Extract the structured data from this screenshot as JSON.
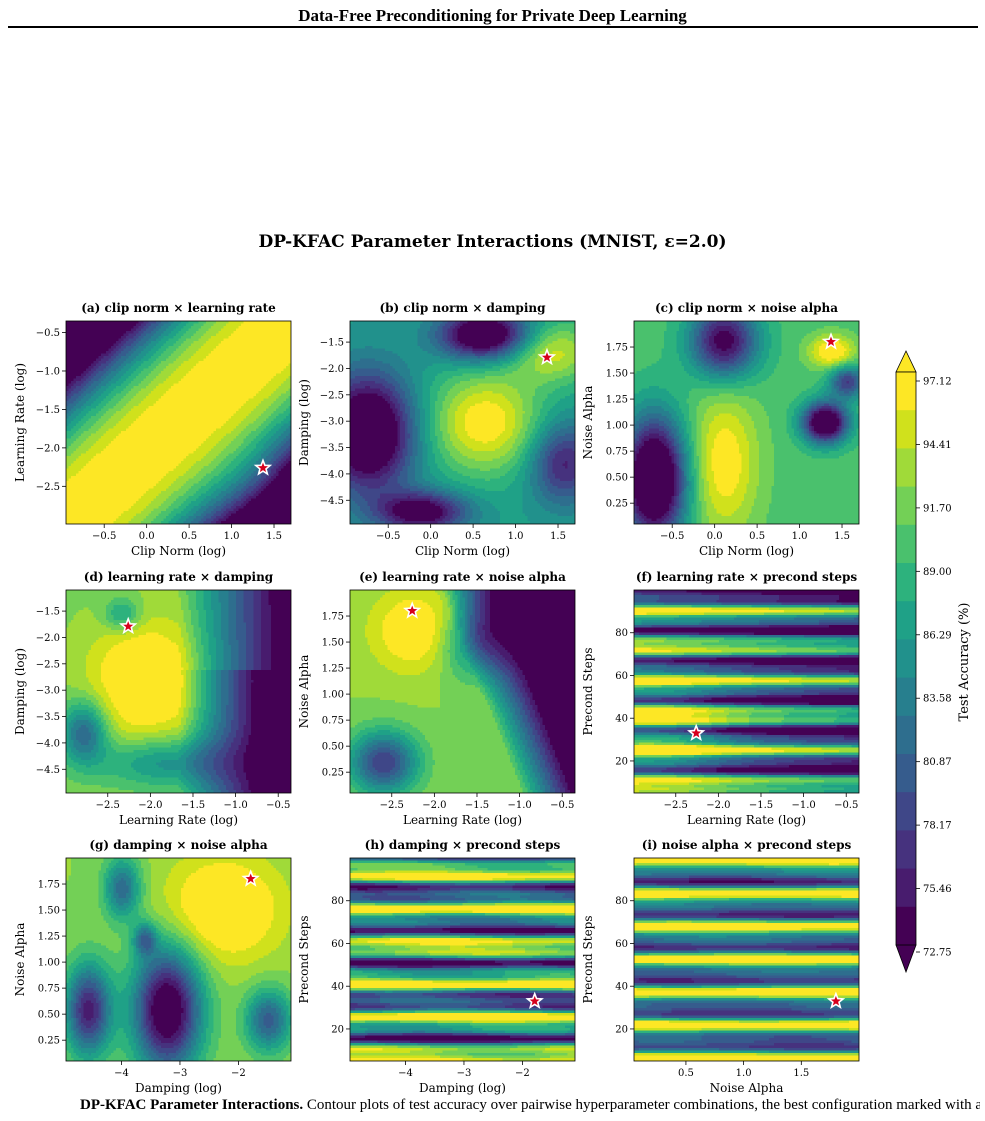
{
  "header": {
    "running_head": "Data-Free Preconditioning for Private Deep Learning"
  },
  "figure": {
    "title": "DP-KFAC Parameter Interactions (MNIST, ε=2.0)",
    "colorbar": {
      "label": "Test Accuracy (%)",
      "levels": [
        "97.12",
        "94.41",
        "91.70",
        "89.00",
        "86.29",
        "83.58",
        "80.87",
        "78.17",
        "75.46",
        "72.75"
      ],
      "colors": [
        "#fde725",
        "#d0e11c",
        "#a0da39",
        "#73d056",
        "#4ac16d",
        "#2db27d",
        "#1fa187",
        "#21918c",
        "#277f8e",
        "#2e6e8e",
        "#365c8d",
        "#3f4788",
        "#46327e",
        "#481c6e",
        "#440154"
      ]
    },
    "best_marker": {
      "shape": "star",
      "color": "#d6001c"
    }
  },
  "chart_data": [
    {
      "type": "heatmap",
      "title": "(a) clip norm × learning rate",
      "xlabel": "Clip Norm (log)",
      "ylabel": "Learning Rate (log)",
      "xlim": [
        -0.95,
        1.7
      ],
      "ylim": [
        -2.99,
        -0.35
      ],
      "xticks": [
        "−0.5",
        "0.0",
        "0.5",
        "1.0",
        "1.5"
      ],
      "xtick_values": [
        -0.5,
        0,
        0.5,
        1.0,
        1.5
      ],
      "yticks": [
        "−0.5",
        "−1.0",
        "−1.5",
        "−2.0",
        "−2.5"
      ],
      "ytick_values": [
        -0.5,
        -1.0,
        -1.5,
        -2.0,
        -2.5
      ],
      "best": [
        1.37,
        -2.26
      ]
    },
    {
      "type": "heatmap",
      "title": "(b) clip norm × damping",
      "xlabel": "Clip Norm (log)",
      "ylabel": "Damping (log)",
      "xlim": [
        -0.95,
        1.7
      ],
      "ylim": [
        -4.95,
        -1.1
      ],
      "xticks": [
        "−0.5",
        "0.0",
        "0.5",
        "1.0",
        "1.5"
      ],
      "xtick_values": [
        -0.5,
        0,
        0.5,
        1.0,
        1.5
      ],
      "yticks": [
        "−1.5",
        "−2.0",
        "−2.5",
        "−3.0",
        "−3.5",
        "−4.0",
        "−4.5"
      ],
      "ytick_values": [
        -1.5,
        -2.0,
        -2.5,
        -3.0,
        -3.5,
        -4.0,
        -4.5
      ],
      "best": [
        1.37,
        -1.79
      ]
    },
    {
      "type": "heatmap",
      "title": "(c) clip norm × noise alpha",
      "xlabel": "Clip Norm (log)",
      "ylabel": "Noise Alpha",
      "xlim": [
        -0.95,
        1.7
      ],
      "ylim": [
        0.05,
        2.0
      ],
      "xticks": [
        "−0.5",
        "0.0",
        "0.5",
        "1.0",
        "1.5"
      ],
      "xtick_values": [
        -0.5,
        0,
        0.5,
        1.0,
        1.5
      ],
      "yticks": [
        "1.75",
        "1.50",
        "1.25",
        "1.00",
        "0.75",
        "0.50",
        "0.25"
      ],
      "ytick_values": [
        1.75,
        1.5,
        1.25,
        1.0,
        0.75,
        0.5,
        0.25
      ],
      "best": [
        1.37,
        1.8
      ]
    },
    {
      "type": "heatmap",
      "title": "(d) learning rate × damping",
      "xlabel": "Learning Rate (log)",
      "ylabel": "Damping (log)",
      "xlim": [
        -2.99,
        -0.35
      ],
      "ylim": [
        -4.95,
        -1.1
      ],
      "xticks": [
        "−2.5",
        "−2.0",
        "−1.5",
        "−1.0",
        "−0.5"
      ],
      "xtick_values": [
        -2.5,
        -2.0,
        -1.5,
        -1.0,
        -0.5
      ],
      "yticks": [
        "−1.5",
        "−2.0",
        "−2.5",
        "−3.0",
        "−3.5",
        "−4.0",
        "−4.5"
      ],
      "ytick_values": [
        -1.5,
        -2.0,
        -2.5,
        -3.0,
        -3.5,
        -4.0,
        -4.5
      ],
      "best": [
        -2.26,
        -1.79
      ]
    },
    {
      "type": "heatmap",
      "title": "(e) learning rate × noise alpha",
      "xlabel": "Learning Rate (log)",
      "ylabel": "Noise Alpha",
      "xlim": [
        -2.99,
        -0.35
      ],
      "ylim": [
        0.05,
        2.0
      ],
      "xticks": [
        "−2.5",
        "−2.0",
        "−1.5",
        "−1.0",
        "−0.5"
      ],
      "xtick_values": [
        -2.5,
        -2.0,
        -1.5,
        -1.0,
        -0.5
      ],
      "yticks": [
        "1.75",
        "1.50",
        "1.25",
        "1.00",
        "0.75",
        "0.50",
        "0.25"
      ],
      "ytick_values": [
        1.75,
        1.5,
        1.25,
        1.0,
        0.75,
        0.5,
        0.25
      ],
      "best": [
        -2.26,
        1.8
      ]
    },
    {
      "type": "heatmap",
      "title": "(f) learning rate × precond steps",
      "xlabel": "Learning Rate (log)",
      "ylabel": "Precond Steps",
      "xlim": [
        -2.99,
        -0.35
      ],
      "ylim": [
        5,
        100
      ],
      "xticks": [
        "−2.5",
        "−2.0",
        "−1.5",
        "−1.0",
        "−0.5"
      ],
      "xtick_values": [
        -2.5,
        -2.0,
        -1.5,
        -1.0,
        -0.5
      ],
      "yticks": [
        "80",
        "60",
        "40",
        "20"
      ],
      "ytick_values": [
        80,
        60,
        40,
        20
      ],
      "best": [
        -2.26,
        33
      ]
    },
    {
      "type": "heatmap",
      "title": "(g) damping × noise alpha",
      "xlabel": "Damping (log)",
      "ylabel": "Noise Alpha",
      "xlim": [
        -4.95,
        -1.1
      ],
      "ylim": [
        0.05,
        2.0
      ],
      "xticks": [
        "−4",
        "−3",
        "−2"
      ],
      "xtick_values": [
        -4,
        -3,
        -2
      ],
      "yticks": [
        "1.75",
        "1.50",
        "1.25",
        "1.00",
        "0.75",
        "0.50",
        "0.25"
      ],
      "ytick_values": [
        1.75,
        1.5,
        1.25,
        1.0,
        0.75,
        0.5,
        0.25
      ],
      "best": [
        -1.79,
        1.8
      ]
    },
    {
      "type": "heatmap",
      "title": "(h) damping × precond steps",
      "xlabel": "Damping (log)",
      "ylabel": "Precond Steps",
      "xlim": [
        -4.95,
        -1.1
      ],
      "ylim": [
        5,
        100
      ],
      "xticks": [
        "−4",
        "−3",
        "−2"
      ],
      "xtick_values": [
        -4,
        -3,
        -2
      ],
      "yticks": [
        "80",
        "60",
        "40",
        "20"
      ],
      "ytick_values": [
        80,
        60,
        40,
        20
      ],
      "best": [
        -1.79,
        33
      ]
    },
    {
      "type": "heatmap",
      "title": "(i) noise alpha × precond steps",
      "xlabel": "Noise Alpha",
      "ylabel": "Precond Steps",
      "xlim": [
        0.05,
        2.0
      ],
      "ylim": [
        5,
        100
      ],
      "xticks": [
        "0.5",
        "1.0",
        "1.5"
      ],
      "xtick_values": [
        0.5,
        1.0,
        1.5
      ],
      "yticks": [
        "80",
        "60",
        "40",
        "20"
      ],
      "ytick_values": [
        80,
        60,
        40,
        20
      ],
      "best": [
        1.8,
        33
      ]
    }
  ],
  "caption": {
    "label": "DP-KFAC Parameter Interactions.",
    "text": "Contour plots of test accuracy over pairwise hyperparameter combinations, the best configuration marked with a star, as a function of the"
  }
}
